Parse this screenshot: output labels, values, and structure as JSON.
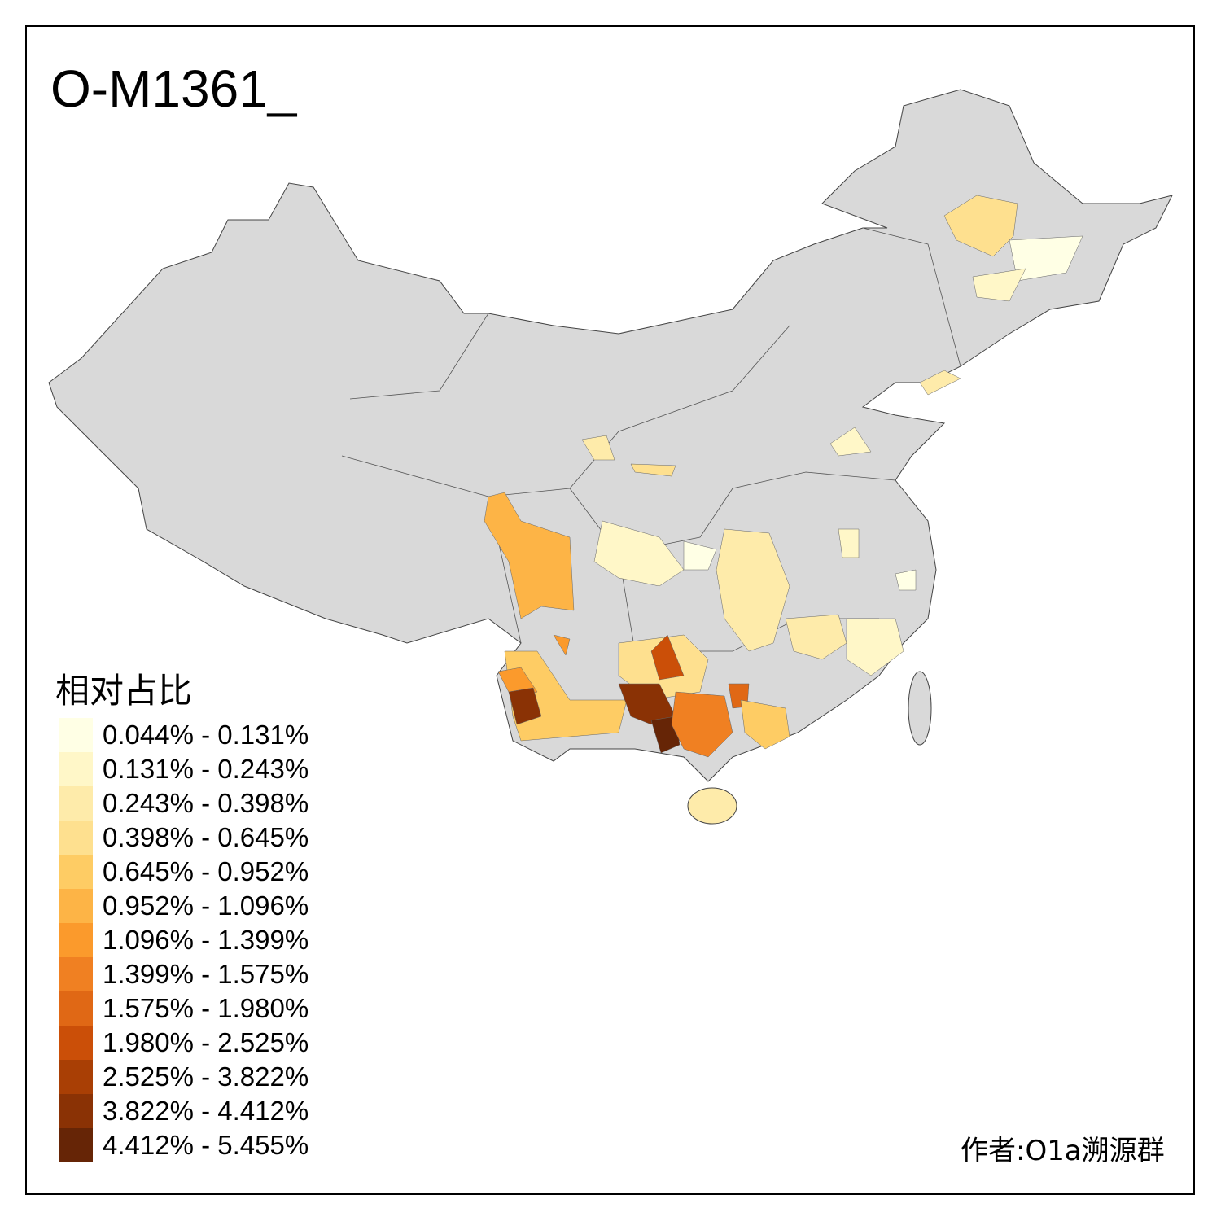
{
  "title": "O-M1361_",
  "legend": {
    "title": "相对占比",
    "items": [
      {
        "label": "0.044% - 0.131%",
        "color": "#FFFFE5"
      },
      {
        "label": "0.131% - 0.243%",
        "color": "#FFF7C8"
      },
      {
        "label": "0.243% - 0.398%",
        "color": "#FEEBAA"
      },
      {
        "label": "0.398% - 0.645%",
        "color": "#FEE08F"
      },
      {
        "label": "0.645% - 0.952%",
        "color": "#FECC64"
      },
      {
        "label": "0.952% - 1.096%",
        "color": "#FDB446"
      },
      {
        "label": "1.096% - 1.399%",
        "color": "#FB9A2C"
      },
      {
        "label": "1.399% - 1.575%",
        "color": "#F08022"
      },
      {
        "label": "1.575% - 1.980%",
        "color": "#E06815"
      },
      {
        "label": "1.980% - 2.525%",
        "color": "#CB4F08"
      },
      {
        "label": "2.525% - 3.822%",
        "color": "#A93F05"
      },
      {
        "label": "3.822% - 4.412%",
        "color": "#8A3205"
      },
      {
        "label": "4.412% - 5.455%",
        "color": "#662506"
      }
    ]
  },
  "no_data_color": "#D9D9D9",
  "credit": "作者:O1a溯源群"
}
